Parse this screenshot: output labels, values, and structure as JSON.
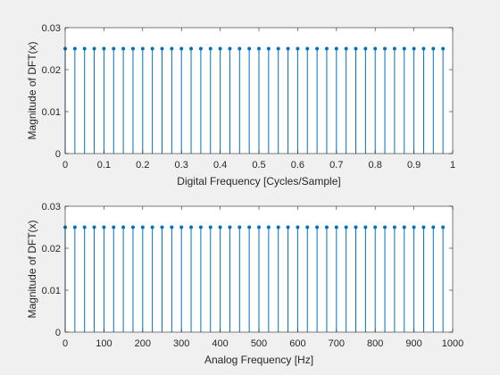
{
  "colors": {
    "figure_background": "#f0f0f0",
    "axes_background": "#ffffff",
    "axis_line": "#262626",
    "stem": "#0072bd"
  },
  "chart_data": [
    {
      "type": "stem",
      "xlabel": "Digital Frequency [Cycles/Sample]",
      "ylabel": "Magnitude of DFT(x)",
      "xlim": [
        0,
        1
      ],
      "ylim": [
        0,
        0.03
      ],
      "xticks": [
        "0",
        "0.1",
        "0.2",
        "0.3",
        "0.4",
        "0.5",
        "0.6",
        "0.7",
        "0.8",
        "0.9",
        "1"
      ],
      "yticks": [
        "0",
        "0.01",
        "0.02",
        "0.03"
      ],
      "grid": false,
      "series": [
        {
          "x_start": 0,
          "x_step": 0.025,
          "count": 40,
          "y": [
            0.025,
            0.025,
            0.025,
            0.025,
            0.025,
            0.025,
            0.025,
            0.025,
            0.025,
            0.025,
            0.025,
            0.025,
            0.025,
            0.025,
            0.025,
            0.025,
            0.025,
            0.025,
            0.025,
            0.025,
            0.025,
            0.025,
            0.025,
            0.025,
            0.025,
            0.025,
            0.025,
            0.025,
            0.025,
            0.025,
            0.025,
            0.025,
            0.025,
            0.025,
            0.025,
            0.025,
            0.025,
            0.025,
            0.025,
            0.025
          ]
        }
      ]
    },
    {
      "type": "stem",
      "xlabel": "Analog Frequency [Hz]",
      "ylabel": "Magnitude of DFT(x)",
      "xlim": [
        0,
        1000
      ],
      "ylim": [
        0,
        0.03
      ],
      "xticks": [
        "0",
        "100",
        "200",
        "300",
        "400",
        "500",
        "600",
        "700",
        "800",
        "900",
        "1000"
      ],
      "yticks": [
        "0",
        "0.01",
        "0.02",
        "0.03"
      ],
      "grid": false,
      "series": [
        {
          "x_start": 0,
          "x_step": 25,
          "count": 40,
          "y": [
            0.025,
            0.025,
            0.025,
            0.025,
            0.025,
            0.025,
            0.025,
            0.025,
            0.025,
            0.025,
            0.025,
            0.025,
            0.025,
            0.025,
            0.025,
            0.025,
            0.025,
            0.025,
            0.025,
            0.025,
            0.025,
            0.025,
            0.025,
            0.025,
            0.025,
            0.025,
            0.025,
            0.025,
            0.025,
            0.025,
            0.025,
            0.025,
            0.025,
            0.025,
            0.025,
            0.025,
            0.025,
            0.025,
            0.025,
            0.025
          ]
        }
      ]
    }
  ]
}
